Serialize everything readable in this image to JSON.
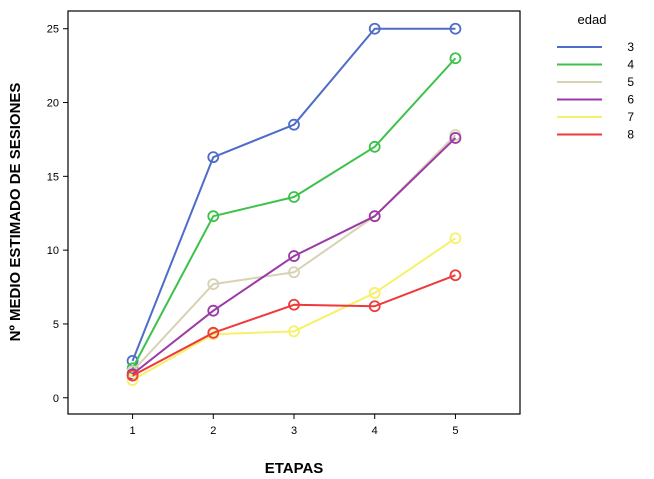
{
  "chart_data": {
    "type": "line",
    "xlabel": "ETAPAS",
    "ylabel": "Nº MEDIO ESTIMADO DE SESIONES",
    "x": [
      1,
      2,
      3,
      4,
      5
    ],
    "x_ticks": [
      "1",
      "2",
      "3",
      "4",
      "5"
    ],
    "y_ticks": [
      "0",
      "5",
      "10",
      "15",
      "20",
      "25"
    ],
    "xlim": [
      0.2,
      5.8
    ],
    "ylim": [
      -1.1,
      26.2
    ],
    "grid": false,
    "marker": "circle",
    "legend_title": "edad",
    "legend_position": "right",
    "series": [
      {
        "name": "3",
        "color": "#4f6cc8",
        "values": [
          2.5,
          16.3,
          18.5,
          25.0,
          25.0
        ]
      },
      {
        "name": "4",
        "color": "#3cc24a",
        "values": [
          2.0,
          12.3,
          13.6,
          17.0,
          23.0
        ]
      },
      {
        "name": "5",
        "color": "#d8d2b4",
        "values": [
          1.8,
          7.7,
          8.5,
          12.3,
          17.8
        ]
      },
      {
        "name": "6",
        "color": "#9b3aa6",
        "values": [
          1.6,
          5.9,
          9.6,
          12.3,
          17.6
        ]
      },
      {
        "name": "7",
        "color": "#f7f06a",
        "values": [
          1.2,
          4.3,
          4.5,
          7.1,
          10.8
        ]
      },
      {
        "name": "8",
        "color": "#ee3a3a",
        "values": [
          1.5,
          4.4,
          6.3,
          6.2,
          8.3
        ]
      }
    ]
  }
}
